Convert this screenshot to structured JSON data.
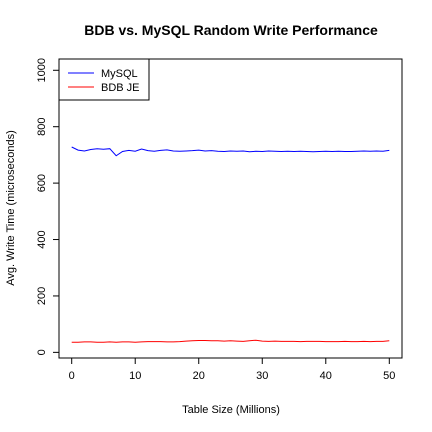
{
  "chart_data": {
    "type": "line",
    "title": "BDB vs. MySQL Random Write Performance",
    "xlabel": "Table Size (Millions)",
    "ylabel": "Avg. Write Time (microseconds)",
    "xlim": [
      -2,
      52
    ],
    "ylim": [
      -20,
      1040
    ],
    "xticks": [
      0,
      10,
      20,
      30,
      40,
      50
    ],
    "yticks": [
      0,
      200,
      400,
      600,
      800,
      1000
    ],
    "grid": false,
    "legend_position": "top-left",
    "x": [
      0,
      1,
      2,
      3,
      4,
      5,
      6,
      7,
      8,
      9,
      10,
      11,
      12,
      13,
      14,
      15,
      16,
      17,
      18,
      19,
      20,
      21,
      22,
      23,
      24,
      25,
      26,
      27,
      28,
      29,
      30,
      31,
      32,
      33,
      34,
      35,
      36,
      37,
      38,
      39,
      40,
      41,
      42,
      43,
      44,
      45,
      46,
      47,
      48,
      49,
      50
    ],
    "series": [
      {
        "name": "MySQL",
        "color": "#0000ff",
        "values": [
          728,
          717,
          714,
          719,
          722,
          720,
          722,
          697,
          712,
          716,
          713,
          721,
          715,
          713,
          716,
          718,
          714,
          713,
          714,
          715,
          717,
          714,
          715,
          713,
          712,
          714,
          713,
          714,
          711,
          713,
          712,
          714,
          713,
          712,
          713,
          712,
          713,
          712,
          711,
          712,
          713,
          712,
          713,
          712,
          712,
          713,
          714,
          713,
          714,
          713,
          716
        ]
      },
      {
        "name": "BDB JE",
        "color": "#ff0000",
        "values": [
          36,
          36,
          37,
          37,
          36,
          36,
          37,
          36,
          37,
          37,
          36,
          37,
          38,
          38,
          38,
          37,
          37,
          38,
          40,
          41,
          42,
          42,
          41,
          41,
          40,
          41,
          40,
          39,
          41,
          43,
          40,
          39,
          40,
          39,
          39,
          39,
          38,
          39,
          39,
          39,
          38,
          38,
          38,
          39,
          38,
          38,
          39,
          38,
          39,
          39,
          41
        ]
      }
    ]
  }
}
